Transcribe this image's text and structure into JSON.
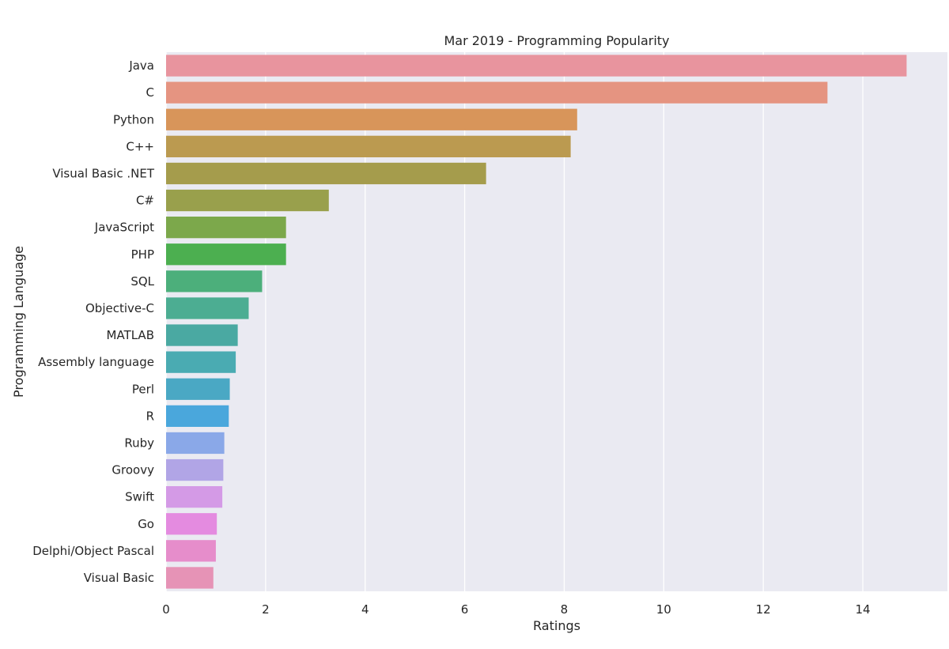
{
  "chart_data": {
    "type": "bar",
    "orientation": "horizontal",
    "title": "Mar 2019 - Programming Popularity",
    "xlabel": "Ratings",
    "ylabel": "Programming Language",
    "xlim": [
      0,
      15.7
    ],
    "xticks": [
      0,
      2,
      4,
      6,
      8,
      10,
      12,
      14
    ],
    "grid": true,
    "categories": [
      "Java",
      "C",
      "Python",
      "C++",
      "Visual Basic .NET",
      "C#",
      "JavaScript",
      "PHP",
      "SQL",
      "Objective-C",
      "MATLAB",
      "Assembly language",
      "Perl",
      "R",
      "Ruby",
      "Groovy",
      "Swift",
      "Go",
      "Delphi/Object Pascal",
      "Visual Basic"
    ],
    "values": [
      14.88,
      13.29,
      8.26,
      8.13,
      6.43,
      3.27,
      2.41,
      2.41,
      1.93,
      1.66,
      1.44,
      1.4,
      1.28,
      1.26,
      1.17,
      1.15,
      1.13,
      1.02,
      1.0,
      0.95
    ],
    "colors": [
      "#e8949e",
      "#e59481",
      "#d8955a",
      "#bb9a50",
      "#a59c4c",
      "#99a04c",
      "#7ca84b",
      "#4caf50",
      "#4caf7b",
      "#4cad92",
      "#4aa9a2",
      "#4aabb2",
      "#4aa8c4",
      "#4aa7dc",
      "#8aa8e8",
      "#b1a5e6",
      "#d49ae6",
      "#e48be0",
      "#e68dcb",
      "#e693b6"
    ],
    "background": "#eaeaf2",
    "gridline_color": "#ffffff"
  }
}
